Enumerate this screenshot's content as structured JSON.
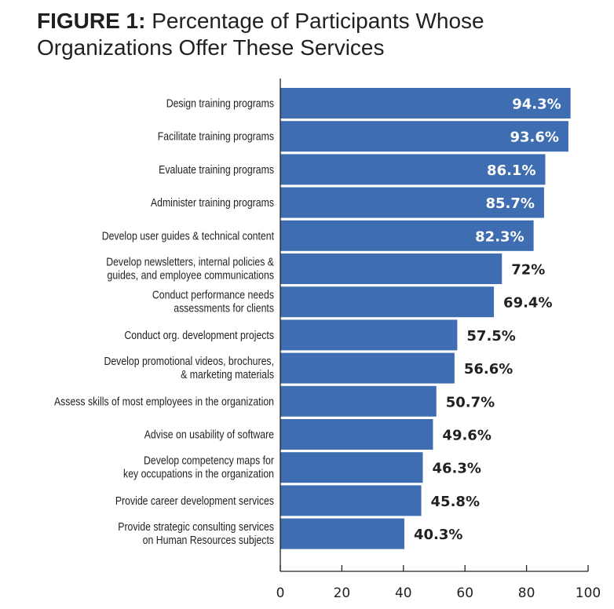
{
  "chart_data": {
    "type": "bar",
    "orientation": "horizontal",
    "title_prefix": "FIGURE 1:",
    "title_line1": "Percentage of Participants Whose",
    "title_line2": "Organizations Offer These Services",
    "categories": [
      [
        "Design training programs"
      ],
      [
        "Facilitate training programs"
      ],
      [
        "Evaluate training programs"
      ],
      [
        "Administer training programs"
      ],
      [
        "Develop user guides & technical content"
      ],
      [
        "Develop newsletters, internal policies &",
        "guides, and employee communications"
      ],
      [
        "Conduct performance needs",
        "assessments for clients"
      ],
      [
        "Conduct org. development projects"
      ],
      [
        "Develop promotional videos, brochures,",
        "& marketing materials"
      ],
      [
        "Assess skills of most employees in the organization"
      ],
      [
        "Advise on usability of software"
      ],
      [
        "Develop competency maps for",
        "key occupations in the organization"
      ],
      [
        "Provide career development services"
      ],
      [
        "Provide strategic consulting services",
        "on Human Resources subjects"
      ]
    ],
    "values": [
      94.3,
      93.6,
      86.1,
      85.7,
      82.3,
      72,
      69.4,
      57.5,
      56.6,
      50.7,
      49.6,
      46.3,
      45.8,
      40.3
    ],
    "value_labels": [
      "94.3%",
      "93.6%",
      "86.1%",
      "85.7%",
      "82.3%",
      "72%",
      "69.4%",
      "57.5%",
      "56.6%",
      "50.7%",
      "49.6%",
      "46.3%",
      "45.8%",
      "40.3%"
    ],
    "xlim": [
      0,
      100
    ],
    "xticks": [
      "0",
      "20",
      "40",
      "60",
      "80",
      "100"
    ],
    "xlabel": "",
    "ylabel": "",
    "grid": false,
    "bar_color": "#3e6db1",
    "inside_label_color": "#ffffff",
    "outside_label_color": "#231f20"
  }
}
